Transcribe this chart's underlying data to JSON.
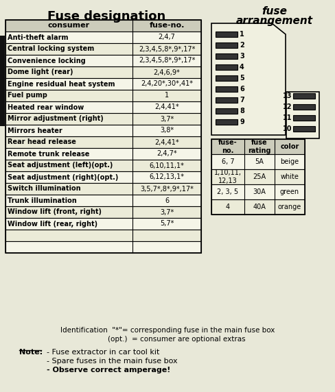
{
  "title_left": "Fuse designation",
  "bg_color": "#e8e8d8",
  "table_header": [
    "consumer",
    "fuse-no."
  ],
  "rows": [
    [
      "Anti-theft alarm",
      "2,4,7"
    ],
    [
      "Central locking system",
      "2,3,4,5,8*,9*,17*"
    ],
    [
      "Convenience locking",
      "2,3,4,5,8*,9*,17*"
    ],
    [
      "Dome light (rear)",
      "2,4,6,9*"
    ],
    [
      "Engine residual heat system",
      "2,4,20*,30*,41*"
    ],
    [
      "Fuel pump",
      "1"
    ],
    [
      "Heated rear window",
      "2,4,41*"
    ],
    [
      "Mirror adjustment (right)",
      "3,7*"
    ],
    [
      "Mirrors heater",
      "3,8*"
    ],
    [
      "Rear head release",
      "2,4,41*"
    ],
    [
      "Remote trunk release",
      "2,4,7*"
    ],
    [
      "Seat adjustment (left)(opt.)",
      "6,10,11,1*"
    ],
    [
      "Seat adjustment (right)(opt.)",
      "6,12,13,1*"
    ],
    [
      "Switch illumination",
      "3,5,7*,8*,9*,17*"
    ],
    [
      "Trunk illumination",
      "6"
    ],
    [
      "Window lift (front, right)",
      "3,7*"
    ],
    [
      "Window lift (rear, right)",
      "5,7*"
    ],
    [
      "",
      ""
    ],
    [
      "",
      ""
    ]
  ],
  "fuse_rating_headers": [
    "fuse-\nno.",
    "fuse\nrating",
    "color"
  ],
  "fuse_rating_rows": [
    [
      "6, 7",
      "5A",
      "beige"
    ],
    [
      "1,10,11,\n12,13",
      "25A",
      "white"
    ],
    [
      "2, 3, 5",
      "30A",
      "green"
    ],
    [
      "4",
      "40A",
      "orange"
    ]
  ],
  "identification_line1": "Identification  \"*\"= corresponding fuse in the main fuse box",
  "identification_line2": "        (opt.)  = consumer are optional extras",
  "note_label": "Note:",
  "note_lines": [
    "- Fuse extractor in car tool kit",
    "- Spare fuses in the main fuse box",
    "- Observe correct amperage!"
  ],
  "note_bold": [
    false,
    false,
    true
  ],
  "border_color": "#000000",
  "text_color": "#000000",
  "header_bg": "#ccccbb",
  "row_bg1": "#f5f5e8",
  "row_bg2": "#ebebd8",
  "fuse_slot_color": "#333333",
  "diag_bg": "#f0f0e0",
  "black_bar_color": "#111111"
}
